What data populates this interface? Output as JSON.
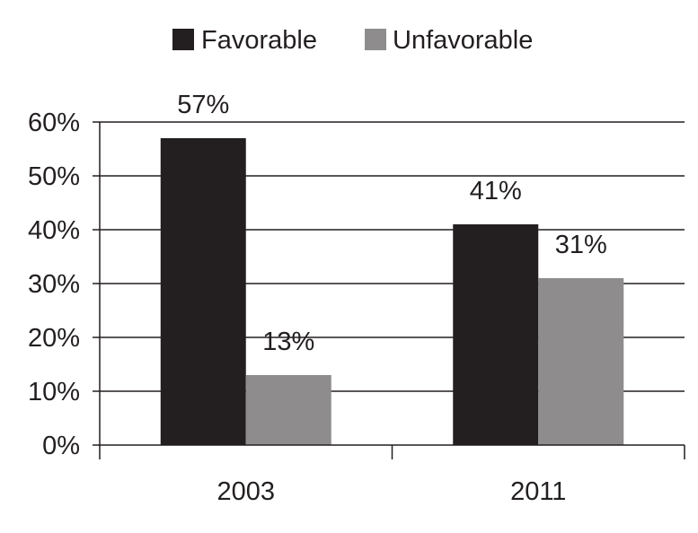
{
  "chart_data": {
    "type": "bar",
    "categories": [
      "2003",
      "2011"
    ],
    "series": [
      {
        "name": "Favorable",
        "values": [
          57,
          41
        ],
        "labels": [
          "57%",
          "41%"
        ],
        "color": "#231f20"
      },
      {
        "name": "Unfavorable",
        "values": [
          13,
          31
        ],
        "labels": [
          "13%",
          "31%"
        ],
        "color": "#8e8c8c"
      }
    ],
    "yticks": [
      0,
      10,
      20,
      30,
      40,
      50,
      60
    ],
    "ytick_labels": [
      "0%",
      "10%",
      "20%",
      "30%",
      "40%",
      "50%",
      "60%"
    ],
    "ylim": [
      0,
      60
    ],
    "grid": true,
    "legend_position": "top",
    "title": "",
    "xlabel": "",
    "ylabel": ""
  }
}
